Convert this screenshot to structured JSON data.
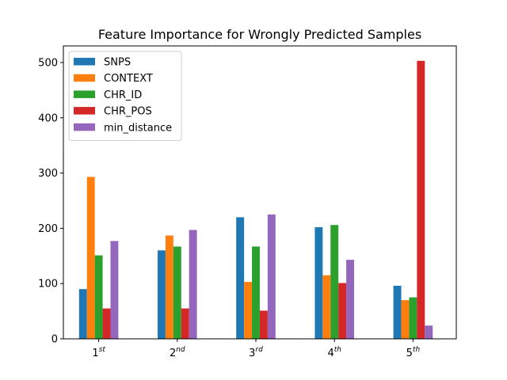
{
  "chart_data": {
    "type": "bar",
    "title": "Feature Importance for Wrongly Predicted Samples",
    "xlabel": "",
    "ylabel": "",
    "categories": [
      {
        "base": "1",
        "sup": "st"
      },
      {
        "base": "2",
        "sup": "nd"
      },
      {
        "base": "3",
        "sup": "rd"
      },
      {
        "base": "4",
        "sup": "th"
      },
      {
        "base": "5",
        "sup": "th"
      }
    ],
    "series": [
      {
        "name": "SNPS",
        "color": "#1f77b4",
        "values": [
          90,
          160,
          220,
          202,
          96
        ]
      },
      {
        "name": "CONTEXT",
        "color": "#ff7f0e",
        "values": [
          293,
          187,
          103,
          115,
          70
        ]
      },
      {
        "name": "CHR_ID",
        "color": "#2ca02c",
        "values": [
          151,
          167,
          167,
          206,
          75
        ]
      },
      {
        "name": "CHR_POS",
        "color": "#d62728",
        "values": [
          55,
          55,
          51,
          101,
          503
        ]
      },
      {
        "name": "min_distance",
        "color": "#9467bd",
        "values": [
          177,
          197,
          225,
          143,
          24
        ]
      }
    ],
    "ylim": [
      0,
      530
    ],
    "yticks": [
      0,
      100,
      200,
      300,
      400,
      500
    ],
    "legend_position": "top-left",
    "grid": false
  }
}
